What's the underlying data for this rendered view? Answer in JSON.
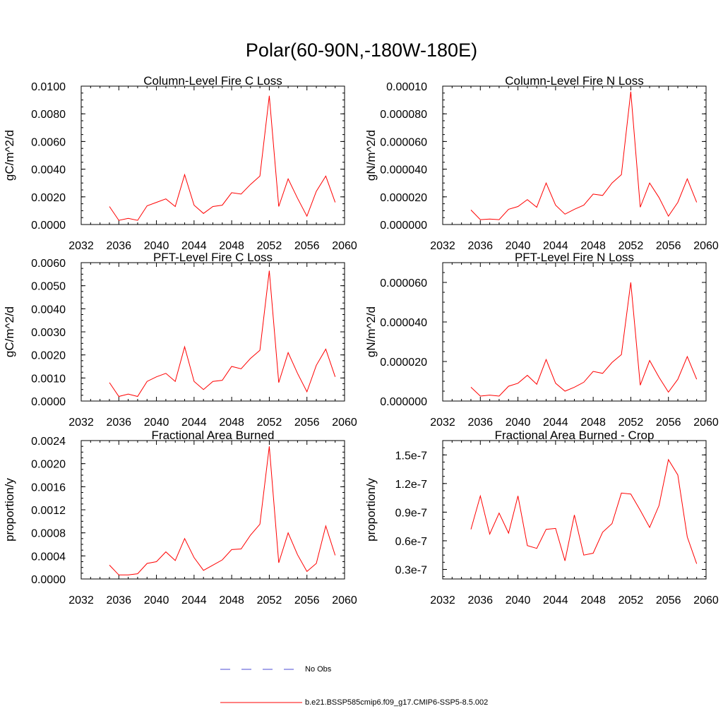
{
  "title": "Polar(60-90N,-180W-180E)",
  "colors": {
    "model": "#ff0000",
    "obs": "#4b4bd6"
  },
  "legend": {
    "obs_label": "No Obs",
    "model_label": "b.e21.BSSP585cmip6.f09_g17.CMIP6-SSP5-8.5.002"
  },
  "chart_data": [
    {
      "type": "line",
      "title": "Column-Level Fire C Loss",
      "ylabel": "gC/m^2/d",
      "xlim": [
        2032,
        2060
      ],
      "ylim": [
        0,
        0.01
      ],
      "x_ticks": [
        "2032",
        "2036",
        "2040",
        "2044",
        "2048",
        "2052",
        "2056",
        "2060"
      ],
      "y_ticks": [
        "0.0000",
        "0.0020",
        "0.0040",
        "0.0060",
        "0.0080",
        "0.0100"
      ],
      "y_tick_values": [
        0,
        0.002,
        0.004,
        0.006,
        0.008,
        0.01
      ],
      "series": [
        {
          "name": "b.e21.BSSP585cmip6.f09_g17.CMIP6-SSP5-8.5.002",
          "x": [
            2035,
            2036,
            2037,
            2038,
            2039,
            2040,
            2041,
            2042,
            2043,
            2044,
            2045,
            2046,
            2047,
            2048,
            2049,
            2050,
            2051,
            2052,
            2053,
            2054,
            2055,
            2056,
            2057,
            2058,
            2059
          ],
          "y": [
            0.0013,
            0.0003,
            0.00045,
            0.0003,
            0.00135,
            0.0016,
            0.00185,
            0.0013,
            0.0036,
            0.0014,
            0.0008,
            0.0013,
            0.0014,
            0.0023,
            0.0022,
            0.0029,
            0.0035,
            0.0093,
            0.0013,
            0.0033,
            0.0019,
            0.0006,
            0.0024,
            0.0035,
            0.0016
          ]
        }
      ]
    },
    {
      "type": "line",
      "title": "Column-Level Fire N Loss",
      "ylabel": "gN/m^2/d",
      "xlim": [
        2032,
        2060
      ],
      "ylim": [
        0,
        0.0001
      ],
      "x_ticks": [
        "2032",
        "2036",
        "2040",
        "2044",
        "2048",
        "2052",
        "2056",
        "2060"
      ],
      "y_ticks": [
        "0.000000",
        "0.000020",
        "0.000040",
        "0.000060",
        "0.000080",
        "0.00010"
      ],
      "y_tick_values": [
        0,
        2e-05,
        4e-05,
        6e-05,
        8e-05,
        0.0001
      ],
      "series": [
        {
          "name": "b.e21.BSSP585cmip6.f09_g17.CMIP6-SSP5-8.5.002",
          "x": [
            2035,
            2036,
            2037,
            2038,
            2039,
            2040,
            2041,
            2042,
            2043,
            2044,
            2045,
            2046,
            2047,
            2048,
            2049,
            2050,
            2051,
            2052,
            2053,
            2054,
            2055,
            2056,
            2057,
            2058,
            2059
          ],
          "y": [
            1.05e-05,
            3.5e-06,
            4e-06,
            3.5e-06,
            1.1e-05,
            1.3e-05,
            1.8e-05,
            1.25e-05,
            3e-05,
            1.4e-05,
            7.5e-06,
            1.1e-05,
            1.4e-05,
            2.2e-05,
            2.1e-05,
            3e-05,
            3.6e-05,
            9.6e-05,
            1.25e-05,
            3e-05,
            1.95e-05,
            6e-06,
            1.6e-05,
            3.3e-05,
            1.6e-05
          ]
        }
      ]
    },
    {
      "type": "line",
      "title": "PFT-Level Fire C Loss",
      "ylabel": "gC/m^2/d",
      "xlim": [
        2032,
        2060
      ],
      "ylim": [
        0,
        0.006
      ],
      "x_ticks": [
        "2032",
        "2036",
        "2040",
        "2044",
        "2048",
        "2052",
        "2056",
        "2060"
      ],
      "y_ticks": [
        "0.0000",
        "0.0010",
        "0.0020",
        "0.0030",
        "0.0040",
        "0.0050",
        "0.0060"
      ],
      "y_tick_values": [
        0,
        0.001,
        0.002,
        0.003,
        0.004,
        0.005,
        0.006
      ],
      "series": [
        {
          "name": "b.e21.BSSP585cmip6.f09_g17.CMIP6-SSP5-8.5.002",
          "x": [
            2035,
            2036,
            2037,
            2038,
            2039,
            2040,
            2041,
            2042,
            2043,
            2044,
            2045,
            2046,
            2047,
            2048,
            2049,
            2050,
            2051,
            2052,
            2053,
            2054,
            2055,
            2056,
            2057,
            2058,
            2059
          ],
          "y": [
            0.0008,
            0.0002,
            0.0003,
            0.0002,
            0.00085,
            0.00105,
            0.0012,
            0.00085,
            0.00235,
            0.00085,
            0.0005,
            0.00085,
            0.0009,
            0.0015,
            0.0014,
            0.00185,
            0.0022,
            0.00565,
            0.0008,
            0.0021,
            0.0012,
            0.0004,
            0.00155,
            0.00225,
            0.00105
          ]
        }
      ]
    },
    {
      "type": "line",
      "title": "PFT-Level Fire N Loss",
      "ylabel": "gN/m^2/d",
      "xlim": [
        2032,
        2060
      ],
      "ylim": [
        0,
        7e-05
      ],
      "x_ticks": [
        "2032",
        "2036",
        "2040",
        "2044",
        "2048",
        "2052",
        "2056",
        "2060"
      ],
      "y_ticks": [
        "0.000000",
        "0.000020",
        "0.000040",
        "0.000060"
      ],
      "y_tick_values": [
        0,
        2e-05,
        4e-05,
        6e-05
      ],
      "series": [
        {
          "name": "b.e21.BSSP585cmip6.f09_g17.CMIP6-SSP5-8.5.002",
          "x": [
            2035,
            2036,
            2037,
            2038,
            2039,
            2040,
            2041,
            2042,
            2043,
            2044,
            2045,
            2046,
            2047,
            2048,
            2049,
            2050,
            2051,
            2052,
            2053,
            2054,
            2055,
            2056,
            2057,
            2058,
            2059
          ],
          "y": [
            7e-06,
            2.5e-06,
            3e-06,
            2.5e-06,
            7.5e-06,
            9e-06,
            1.3e-05,
            8.5e-06,
            2.1e-05,
            9e-06,
            5e-06,
            7e-06,
            9.5e-06,
            1.5e-05,
            1.4e-05,
            1.95e-05,
            2.35e-05,
            6e-05,
            8e-06,
            2.05e-05,
            1.2e-05,
            4.5e-06,
            1.1e-05,
            2.25e-05,
            1.1e-05
          ]
        }
      ]
    },
    {
      "type": "line",
      "title": "Fractional Area Burned",
      "ylabel": "proportion/y",
      "xlim": [
        2032,
        2060
      ],
      "ylim": [
        0,
        0.0024
      ],
      "x_ticks": [
        "2032",
        "2036",
        "2040",
        "2044",
        "2048",
        "2052",
        "2056",
        "2060"
      ],
      "y_ticks": [
        "0.0000",
        "0.0004",
        "0.0008",
        "0.0012",
        "0.0016",
        "0.0020",
        "0.0024"
      ],
      "y_tick_values": [
        0,
        0.0004,
        0.0008,
        0.0012,
        0.0016,
        0.002,
        0.0024
      ],
      "series": [
        {
          "name": "b.e21.BSSP585cmip6.f09_g17.CMIP6-SSP5-8.5.002",
          "x": [
            2035,
            2036,
            2037,
            2038,
            2039,
            2040,
            2041,
            2042,
            2043,
            2044,
            2045,
            2046,
            2047,
            2048,
            2049,
            2050,
            2051,
            2052,
            2053,
            2054,
            2055,
            2056,
            2057,
            2058,
            2059
          ],
          "y": [
            0.00024,
            7e-05,
            7e-05,
            9e-05,
            0.00027,
            0.0003,
            0.00047,
            0.00032,
            0.0007,
            0.00037,
            0.00015,
            0.00024,
            0.00033,
            0.00051,
            0.00052,
            0.00076,
            0.00095,
            0.0023,
            0.00028,
            0.0008,
            0.00042,
            0.00013,
            0.00027,
            0.00092,
            0.00041
          ]
        }
      ]
    },
    {
      "type": "line",
      "title": "Fractional Area Burned - Crop",
      "ylabel": "proportion/y",
      "xlim": [
        2032,
        2060
      ],
      "ylim": [
        2e-08,
        1.65e-07
      ],
      "x_ticks": [
        "2032",
        "2036",
        "2040",
        "2044",
        "2048",
        "2052",
        "2056",
        "2060"
      ],
      "y_ticks": [
        "0.3e-7",
        "0.6e-7",
        "0.9e-7",
        "1.2e-7",
        "1.5e-7"
      ],
      "y_tick_values": [
        3e-08,
        6e-08,
        9e-08,
        1.2e-07,
        1.5e-07
      ],
      "series": [
        {
          "name": "b.e21.BSSP585cmip6.f09_g17.CMIP6-SSP5-8.5.002",
          "x": [
            2035,
            2036,
            2037,
            2038,
            2039,
            2040,
            2041,
            2042,
            2043,
            2044,
            2045,
            2046,
            2047,
            2048,
            2049,
            2050,
            2051,
            2052,
            2053,
            2054,
            2055,
            2056,
            2057,
            2058,
            2059
          ],
          "y": [
            7.2e-08,
            1.07e-07,
            6.7e-08,
            8.9e-08,
            6.8e-08,
            1.07e-07,
            5.5e-08,
            5.2e-08,
            7.2e-08,
            7.3e-08,
            3.9e-08,
            8.7e-08,
            4.5e-08,
            4.7e-08,
            6.9e-08,
            7.8e-08,
            1.1e-07,
            1.09e-07,
            9.2e-08,
            7.4e-08,
            9.7e-08,
            1.45e-07,
            1.29e-07,
            6.4e-08,
            3.6e-08
          ]
        }
      ]
    }
  ]
}
